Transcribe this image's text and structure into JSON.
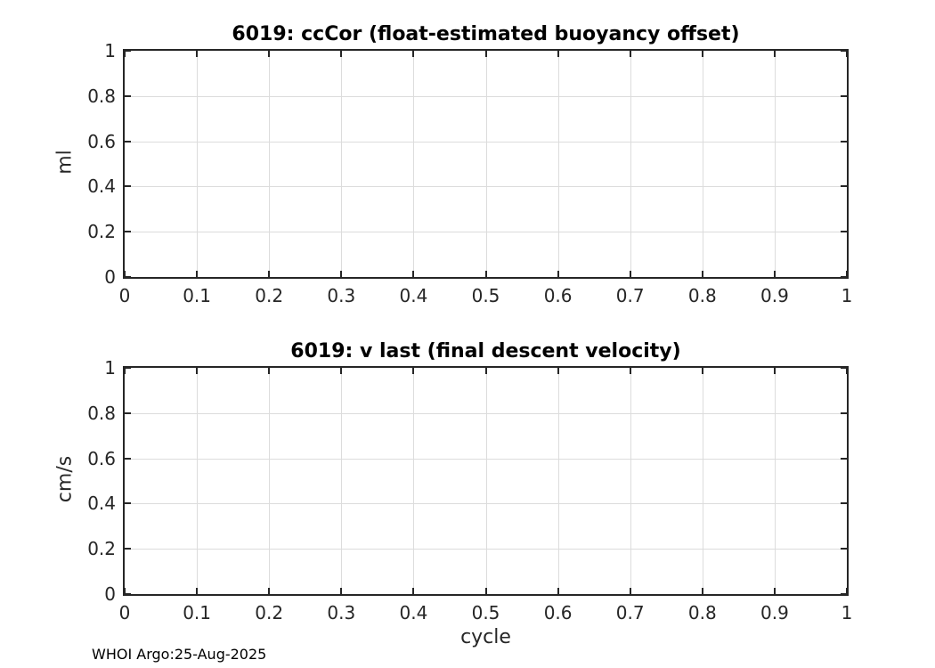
{
  "figure": {
    "background": "#ffffff",
    "footer": "WHOI Argo:25-Aug-2025"
  },
  "style": {
    "axes_color": "#262626",
    "grid_color": "#dcdcdc",
    "text_color": "#262626",
    "title_color": "#000000"
  },
  "chart_data": [
    {
      "type": "line",
      "title": "6019: ccCor (float-estimated buoyancy offset)",
      "xlabel": "",
      "ylabel": "ml",
      "xlim": [
        0,
        1
      ],
      "ylim": [
        0,
        1
      ],
      "xticks": [
        0,
        0.1,
        0.2,
        0.3,
        0.4,
        0.5,
        0.6,
        0.7,
        0.8,
        0.9,
        1
      ],
      "xtick_labels": [
        "0",
        "0.1",
        "0.2",
        "0.3",
        "0.4",
        "0.5",
        "0.6",
        "0.7",
        "0.8",
        "0.9",
        "1"
      ],
      "yticks": [
        0,
        0.2,
        0.4,
        0.6,
        0.8,
        1
      ],
      "ytick_labels": [
        "0",
        "0.2",
        "0.4",
        "0.6",
        "0.8",
        "1"
      ],
      "grid": true,
      "legend": null,
      "series": []
    },
    {
      "type": "line",
      "title": "6019: v last (final descent velocity)",
      "xlabel": "cycle",
      "ylabel": "cm/s",
      "xlim": [
        0,
        1
      ],
      "ylim": [
        0,
        1
      ],
      "xticks": [
        0,
        0.1,
        0.2,
        0.3,
        0.4,
        0.5,
        0.6,
        0.7,
        0.8,
        0.9,
        1
      ],
      "xtick_labels": [
        "0",
        "0.1",
        "0.2",
        "0.3",
        "0.4",
        "0.5",
        "0.6",
        "0.7",
        "0.8",
        "0.9",
        "1"
      ],
      "yticks": [
        0,
        0.2,
        0.4,
        0.6,
        0.8,
        1
      ],
      "ytick_labels": [
        "0",
        "0.2",
        "0.4",
        "0.6",
        "0.8",
        "1"
      ],
      "grid": true,
      "legend": null,
      "series": []
    }
  ]
}
